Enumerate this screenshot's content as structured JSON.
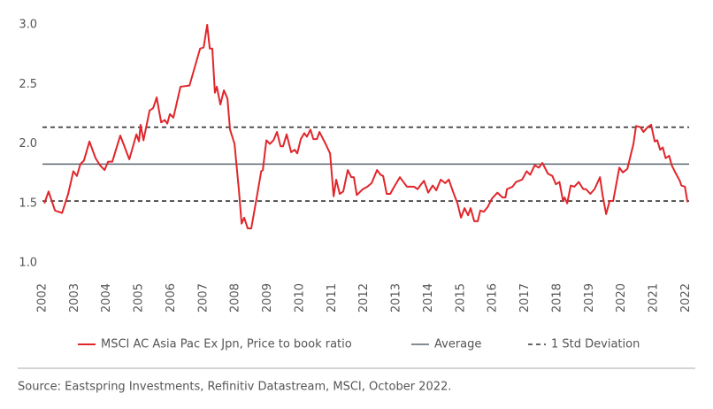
{
  "chart_data": {
    "type": "line",
    "ylim": [
      1,
      3
    ],
    "yticks": [
      {
        "value": 1,
        "label": "1.0"
      },
      {
        "value": 1.5,
        "label": "1.5"
      },
      {
        "value": 2,
        "label": "2.0"
      },
      {
        "value": 2.5,
        "label": "2.5"
      },
      {
        "value": 3,
        "label": "3.0"
      }
    ],
    "xlim": [
      2002,
      2022.1
    ],
    "xticks": [
      2002,
      2003,
      2004,
      2005,
      2006,
      2007,
      2008,
      2009,
      2010,
      2011,
      2012,
      2013,
      2014,
      2015,
      2016,
      2017,
      2018,
      2019,
      2020,
      2021,
      2022
    ],
    "grid": false,
    "series": [
      {
        "name": "MSCI AC Asia Pac Ex Jpn, Price to book ratio",
        "color": "#e0262b",
        "x": [
          2002.06,
          2002.19,
          2002.39,
          2002.61,
          2002.8,
          2002.96,
          2003.07,
          2003.18,
          2003.29,
          2003.46,
          2003.65,
          2003.79,
          2003.93,
          2004.04,
          2004.17,
          2004.42,
          2004.7,
          2004.92,
          2005.0,
          2005.05,
          2005.14,
          2005.33,
          2005.44,
          2005.55,
          2005.69,
          2005.8,
          2005.88,
          2005.96,
          2006.07,
          2006.29,
          2006.57,
          2006.9,
          2007.01,
          2007.12,
          2007.2,
          2007.28,
          2007.36,
          2007.42,
          2007.53,
          2007.64,
          2007.75,
          2007.83,
          2007.97,
          2008.11,
          2008.19,
          2008.27,
          2008.38,
          2008.49,
          2008.66,
          2008.8,
          2008.85,
          2008.96,
          2009.07,
          2009.18,
          2009.29,
          2009.4,
          2009.48,
          2009.59,
          2009.73,
          2009.84,
          2009.92,
          2010.03,
          2010.14,
          2010.22,
          2010.33,
          2010.42,
          2010.53,
          2010.61,
          2010.8,
          2010.94,
          2011.05,
          2011.13,
          2011.24,
          2011.35,
          2011.49,
          2011.6,
          2011.68,
          2011.77,
          2011.96,
          2012.1,
          2012.23,
          2012.4,
          2012.51,
          2012.59,
          2012.7,
          2012.81,
          2012.89,
          2013.11,
          2013.33,
          2013.55,
          2013.66,
          2013.77,
          2013.86,
          2013.99,
          2014.13,
          2014.24,
          2014.38,
          2014.52,
          2014.63,
          2014.76,
          2014.9,
          2015.01,
          2015.12,
          2015.23,
          2015.31,
          2015.42,
          2015.53,
          2015.61,
          2015.72,
          2015.84,
          2015.97,
          2016.14,
          2016.3,
          2016.39,
          2016.44,
          2016.61,
          2016.72,
          2016.91,
          2017.05,
          2017.16,
          2017.3,
          2017.43,
          2017.54,
          2017.71,
          2017.85,
          2017.96,
          2018.07,
          2018.18,
          2018.23,
          2018.31,
          2018.42,
          2018.53,
          2018.67,
          2018.81,
          2018.89,
          2019.03,
          2019.16,
          2019.33,
          2019.41,
          2019.52,
          2019.63,
          2019.74,
          2019.93,
          2020.04,
          2020.18,
          2020.37,
          2020.45,
          2020.59,
          2020.68,
          2020.81,
          2020.92,
          2021.03,
          2021.11,
          2021.2,
          2021.28,
          2021.37,
          2021.48,
          2021.56,
          2021.67,
          2021.81,
          2021.86,
          2021.97,
          2022.05
        ],
        "values": [
          1.5,
          1.6,
          1.44,
          1.42,
          1.58,
          1.77,
          1.73,
          1.83,
          1.86,
          2.02,
          1.88,
          1.82,
          1.78,
          1.85,
          1.85,
          2.07,
          1.87,
          2.08,
          2.02,
          2.16,
          2.03,
          2.28,
          2.3,
          2.39,
          2.18,
          2.2,
          2.17,
          2.25,
          2.22,
          2.48,
          2.49,
          2.8,
          2.81,
          3.0,
          2.8,
          2.8,
          2.43,
          2.48,
          2.33,
          2.45,
          2.38,
          2.12,
          2.0,
          1.6,
          1.33,
          1.38,
          1.29,
          1.29,
          1.55,
          1.77,
          1.78,
          2.03,
          2.0,
          2.03,
          2.1,
          1.98,
          1.98,
          2.08,
          1.93,
          1.95,
          1.92,
          2.04,
          2.09,
          2.06,
          2.12,
          2.04,
          2.04,
          2.1,
          2.0,
          1.92,
          1.56,
          1.7,
          1.58,
          1.6,
          1.78,
          1.72,
          1.72,
          1.57,
          1.62,
          1.64,
          1.67,
          1.78,
          1.74,
          1.73,
          1.58,
          1.58,
          1.62,
          1.72,
          1.64,
          1.64,
          1.62,
          1.66,
          1.69,
          1.59,
          1.65,
          1.61,
          1.7,
          1.67,
          1.7,
          1.6,
          1.5,
          1.38,
          1.46,
          1.4,
          1.46,
          1.35,
          1.35,
          1.44,
          1.43,
          1.47,
          1.54,
          1.59,
          1.55,
          1.55,
          1.62,
          1.64,
          1.68,
          1.7,
          1.77,
          1.74,
          1.82,
          1.8,
          1.84,
          1.75,
          1.73,
          1.66,
          1.68,
          1.52,
          1.55,
          1.5,
          1.65,
          1.64,
          1.68,
          1.62,
          1.62,
          1.58,
          1.62,
          1.72,
          1.57,
          1.41,
          1.52,
          1.52,
          1.8,
          1.76,
          1.79,
          2.0,
          2.15,
          2.14,
          2.1,
          2.14,
          2.16,
          2.02,
          2.03,
          1.95,
          1.97,
          1.88,
          1.9,
          1.82,
          1.76,
          1.69,
          1.65,
          1.64,
          1.51
        ]
      }
    ],
    "reference_lines": [
      {
        "name": "Average",
        "color": "#5b6770",
        "line_style": "solid",
        "values": [
          1.83
        ]
      },
      {
        "name": "1 Std Deviation",
        "color": "#333333",
        "line_style": "dashed",
        "values": [
          2.14,
          1.52
        ]
      }
    ],
    "source": "Source: Eastspring Investments, Refinitiv Datastream, MSCI, October 2022."
  }
}
